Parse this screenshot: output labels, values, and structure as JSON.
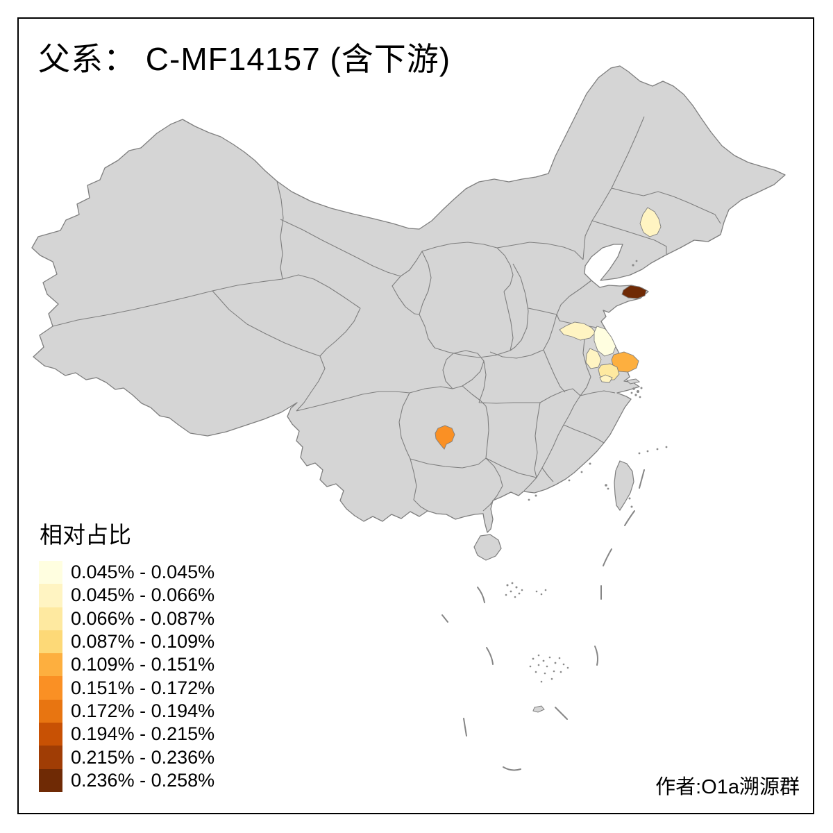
{
  "title": "父系： C-MF14157 (含下游)",
  "attribution": "作者:O1a溯源群",
  "legend": {
    "title": "相对占比",
    "items": [
      {
        "label": "0.045% - 0.045%",
        "color": "#FFFEE0"
      },
      {
        "label": "0.045% - 0.066%",
        "color": "#FFF4C2"
      },
      {
        "label": "0.066% - 0.087%",
        "color": "#FEE9A0"
      },
      {
        "label": "0.087% - 0.109%",
        "color": "#FDD977"
      },
      {
        "label": "0.109% - 0.151%",
        "color": "#FDAF3F"
      },
      {
        "label": "0.151% - 0.172%",
        "color": "#FA9024"
      },
      {
        "label": "0.172% - 0.194%",
        "color": "#E87511"
      },
      {
        "label": "0.194% - 0.215%",
        "color": "#C85104"
      },
      {
        "label": "0.215% - 0.236%",
        "color": "#A03D05"
      },
      {
        "label": "0.236% - 0.258%",
        "color": "#6F2A05"
      }
    ]
  },
  "map": {
    "base_fill": "#D5D5D5",
    "border_color": "#7E7E7E",
    "dash_color": "#858585",
    "regions": [
      {
        "name": "northeast-patch",
        "range": "0.045% - 0.066%",
        "color": "#FFF4C2"
      },
      {
        "name": "shandong-tip-patch",
        "range": "0.236% - 0.258%",
        "color": "#6F2A05"
      },
      {
        "name": "northwest-jiangsu-band",
        "range": "0.045% - 0.066%",
        "color": "#FFF4C2"
      },
      {
        "name": "north-jiangsu-patch",
        "range": "0.045% - 0.045%",
        "color": "#FFFEE0"
      },
      {
        "name": "west-jiangsu-patch",
        "range": "0.045% - 0.066%",
        "color": "#FFF4C2"
      },
      {
        "name": "coastal-jiangsu-patch",
        "range": "0.109% - 0.151%",
        "color": "#FDAF3F"
      },
      {
        "name": "south-jiangsu-patch",
        "range": "0.066% - 0.087%",
        "color": "#FEE9A0"
      },
      {
        "name": "south-jiangsu-rim",
        "range": "0.045% - 0.066%",
        "color": "#FFF4C2"
      },
      {
        "name": "guizhou-patch",
        "range": "0.151% - 0.172%",
        "color": "#FA9024"
      }
    ]
  }
}
